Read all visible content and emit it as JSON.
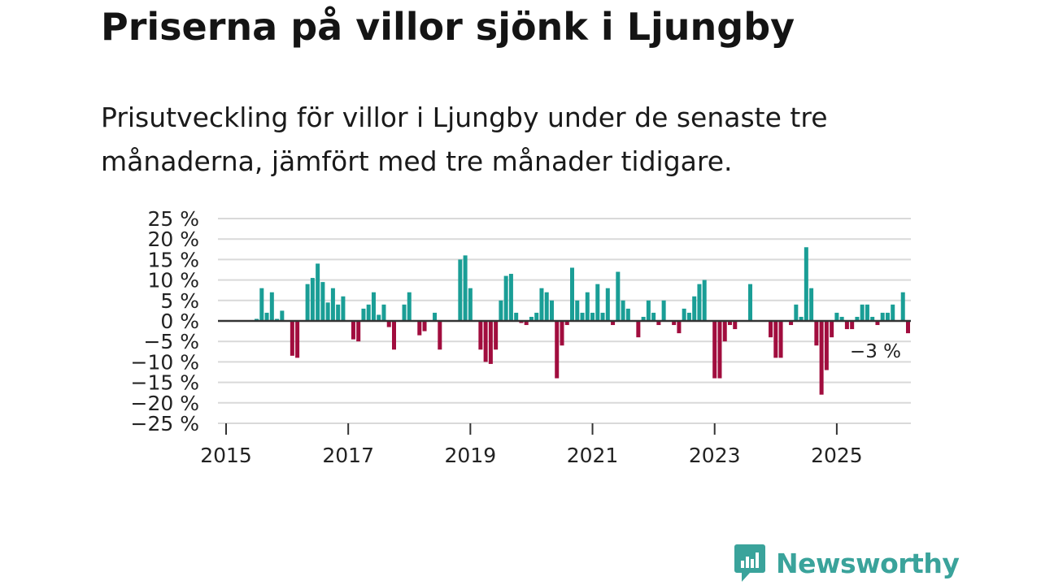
{
  "title": "Priserna på villor sjönk i Ljungby",
  "subtitle": "Prisutveckling för villor i Ljungby under de senaste tre månaderna, jämfört med tre månader tidigare.",
  "brand": "Newsworthy",
  "colors": {
    "positive": "#1a9e96",
    "negative": "#a10d3e",
    "brand": "#3aa39b"
  },
  "chart_data": {
    "type": "bar",
    "title": "",
    "xlabel": "",
    "ylabel": "",
    "ylim": [
      -25,
      25
    ],
    "yticks": [
      25,
      20,
      15,
      10,
      5,
      0,
      -5,
      -10,
      -15,
      -20,
      -25
    ],
    "ytick_labels": [
      "25 %",
      "20 %",
      "15 %",
      "10 %",
      "5 %",
      "0 %",
      "−5 %",
      "−10 %",
      "−15 %",
      "−20 %",
      "−25 %"
    ],
    "xlim": [
      2015.0,
      2026.2
    ],
    "xticks": [
      2015,
      2017,
      2019,
      2021,
      2023,
      2025
    ],
    "xtick_labels": [
      "2015",
      "2017",
      "2019",
      "2021",
      "2023",
      "2025"
    ],
    "annotation": "−3 %",
    "start_year": 2015,
    "start_month": 7,
    "values": [
      0.5,
      8,
      2,
      7,
      0.5,
      2.5,
      0,
      -8.5,
      -9,
      0,
      9,
      10.5,
      14,
      9.5,
      4.5,
      8,
      4,
      6,
      0,
      -4.5,
      -5,
      3,
      4,
      7,
      1.5,
      4,
      -1.5,
      -7,
      0,
      4,
      7,
      0,
      -3.5,
      -2.5,
      0,
      2,
      -7,
      0,
      0,
      0,
      15,
      16,
      8,
      0,
      -7,
      -10,
      -10.5,
      -7,
      5,
      11,
      11.5,
      2,
      -0.5,
      -1,
      1,
      2,
      8,
      7,
      5,
      -14,
      -6,
      -1,
      13,
      5,
      2,
      7,
      2,
      9,
      2,
      8,
      -1,
      12,
      5,
      3,
      0,
      -4,
      1,
      5,
      2,
      -1,
      5,
      0,
      -1,
      -3,
      3,
      2,
      6,
      9,
      10,
      0,
      -14,
      -14,
      -5,
      -1,
      -2,
      0,
      0,
      9,
      0,
      0,
      0,
      -4,
      -9,
      -9,
      0,
      -1,
      4,
      1,
      18,
      8,
      -6,
      -18,
      -12,
      -4,
      2,
      1,
      -2,
      -2,
      1,
      4,
      4,
      1,
      -1,
      2,
      2,
      4,
      0,
      7,
      -3
    ]
  }
}
